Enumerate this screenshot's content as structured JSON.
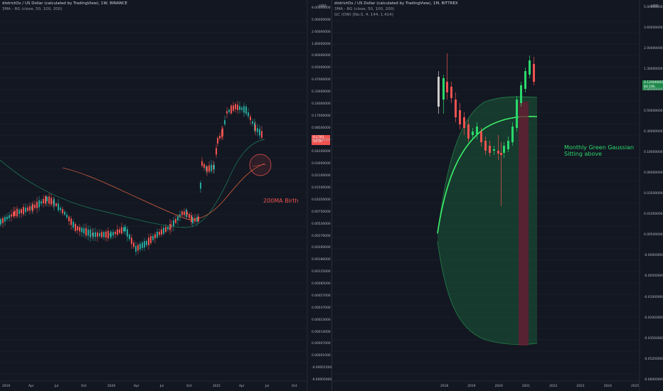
{
  "left_chart": {
    "title": "districtOx / US Dollar (calculated by TradingView), 1W, BINANCE",
    "indicator": "3MA - RG (close, 50, 100, 200)",
    "annotation": "200MA Birth",
    "current_price_label": "0.1761\n1d 5h",
    "time_labels": [
      "2019",
      "Apr",
      "Jul",
      "Oct",
      "2020",
      "Apr",
      "Jul",
      "Oct",
      "2021",
      "Apr",
      "Jul",
      "Oct"
    ],
    "price_labels": [
      "8.00000000",
      "5.00000000",
      "2.60000000",
      "1.80000000",
      "0.90000000",
      "0.65000000",
      "0.47000000",
      "0.33000000",
      "0.24000000",
      "0.17000000",
      "0.08500000",
      "0.06000000",
      "0.04200000",
      "0.03000000",
      "0.02100000",
      "0.01500000",
      "0.01050000",
      "0.00750000",
      "0.00530000",
      "0.00370000",
      "0.00260000",
      "0.00180000",
      "0.00125000",
      "0.00085000",
      "0.00057000",
      "0.00037000",
      "0.00023000",
      "0.00014000",
      "0.00007000",
      "0.00001000",
      "-0.00001500",
      "-0.00005000"
    ],
    "unit": "USD",
    "colors": {
      "up": "#26a69a",
      "down": "#ef5350",
      "ma_green": "#1b6b4f",
      "ma_orange": "#c0583a"
    }
  },
  "right_chart": {
    "title": "districtOx / US Dollar (calculated by TradingView), 1M, BITTREX",
    "indicator": "3MA - RG (close, 50, 100, 200)",
    "indicator2": "GC (DW) [No.S, 4, 144, 1.414]",
    "annotation": "Monthly Green Gaussian\nSitting above",
    "current_price_label": "0.12000002\n8d 19h",
    "time_labels": [
      "2018",
      "2019",
      "2020",
      "2021",
      "2022",
      "2023",
      "2024",
      "2025"
    ],
    "price_labels": [
      "5.00000000",
      "3.60000000",
      "2.00000000",
      "1.30000000",
      "0.80000000",
      "0.50000000",
      "0.30000000",
      "0.18000000",
      "0.06000000",
      "0.03500000",
      "0.01000000",
      "0.00500000",
      "-0.00000000",
      "-0.00500000",
      "-0.01000000",
      "-0.02000000",
      "-0.03500000",
      "-0.05200000",
      "-0.08400000"
    ],
    "unit": "USD",
    "colors": {
      "gaussian": "#1f7a44",
      "gaussian_line": "#3cf26a",
      "bull": "#2ad86b",
      "bear": "#ef5350",
      "band_red": "#6e1b34"
    }
  }
}
